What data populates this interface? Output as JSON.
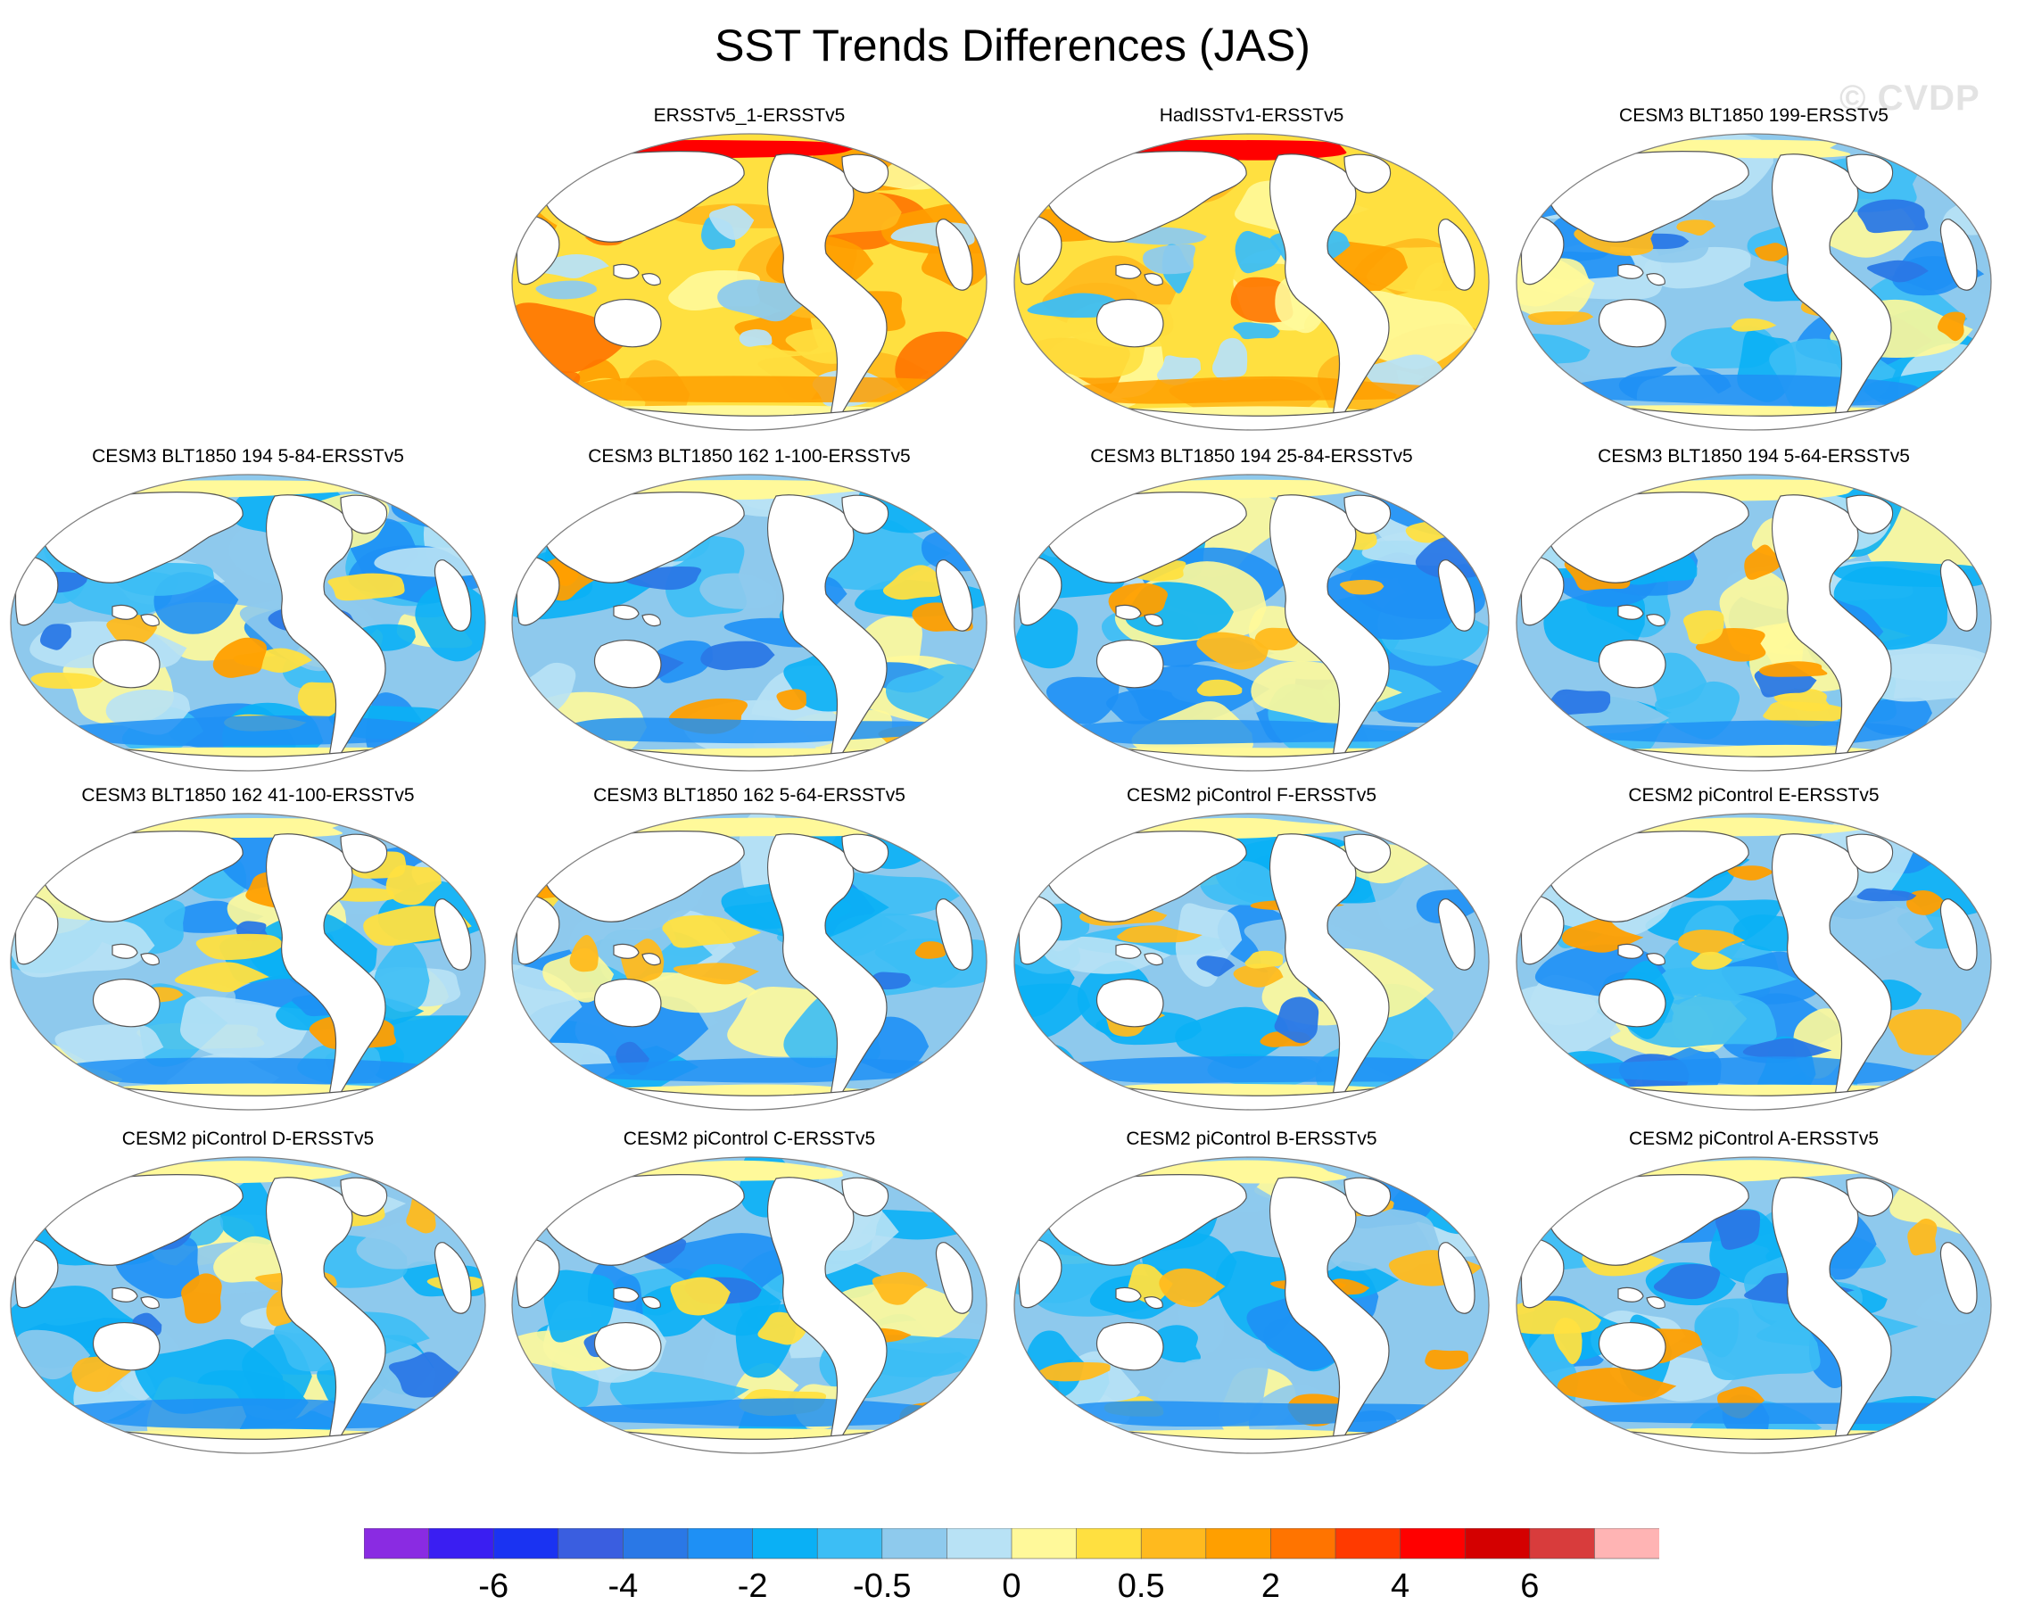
{
  "title": "SST Trends Differences (JAS)",
  "watermark": "© CVDP",
  "colors": {
    "ocean_base": "#8ec9ed",
    "land": "#ffffff",
    "coast": "#555555",
    "outline": "#808080"
  },
  "panels": [
    {
      "title": "ERSSTv5_1-ERSSTv5",
      "tone": "warm"
    },
    {
      "title": "HadISSTv1-ERSSTv5",
      "tone": "warm"
    },
    {
      "title": "CESM3 BLT1850 199-ERSSTv5",
      "tone": "cool"
    },
    {
      "title": "CESM3 BLT1850 194 5-84-ERSSTv5",
      "tone": "cool"
    },
    {
      "title": "CESM3 BLT1850 162 1-100-ERSSTv5",
      "tone": "cool"
    },
    {
      "title": "CESM3 BLT1850 194 25-84-ERSSTv5",
      "tone": "cool"
    },
    {
      "title": "CESM3 BLT1850 194 5-64-ERSSTv5",
      "tone": "cool"
    },
    {
      "title": "CESM3 BLT1850 162 41-100-ERSSTv5",
      "tone": "cool"
    },
    {
      "title": "CESM3 BLT1850 162 5-64-ERSSTv5",
      "tone": "cool"
    },
    {
      "title": "CESM2 piControl F-ERSSTv5",
      "tone": "cool"
    },
    {
      "title": "CESM2 piControl E-ERSSTv5",
      "tone": "cool"
    },
    {
      "title": "CESM2 piControl D-ERSSTv5",
      "tone": "cool"
    },
    {
      "title": "CESM2 piControl C-ERSSTv5",
      "tone": "cool"
    },
    {
      "title": "CESM2 piControl B-ERSSTv5",
      "tone": "cool"
    },
    {
      "title": "CESM2 piControl A-ERSSTv5",
      "tone": "cool"
    }
  ],
  "colorbar": {
    "colors": [
      "#8a2be2",
      "#3a1ef2",
      "#1a33f2",
      "#3a5ee0",
      "#2a78e6",
      "#1e90f5",
      "#0ab0f5",
      "#3cbef5",
      "#8ecaed",
      "#b8e2f5",
      "#fff99a",
      "#ffe040",
      "#ffba1e",
      "#ff9f00",
      "#ff7400",
      "#ff3a00",
      "#ff0000",
      "#d40000",
      "#d83c3c",
      "#ffb4b4"
    ],
    "labels": [
      {
        "text": "-6",
        "boundary": 2
      },
      {
        "text": "-4",
        "boundary": 4
      },
      {
        "text": "-2",
        "boundary": 6
      },
      {
        "text": "-0.5",
        "boundary": 8
      },
      {
        "text": "0",
        "boundary": 10
      },
      {
        "text": "0.5",
        "boundary": 12
      },
      {
        "text": "2",
        "boundary": 14
      },
      {
        "text": "4",
        "boundary": 16
      },
      {
        "text": "6",
        "boundary": 18
      }
    ]
  }
}
